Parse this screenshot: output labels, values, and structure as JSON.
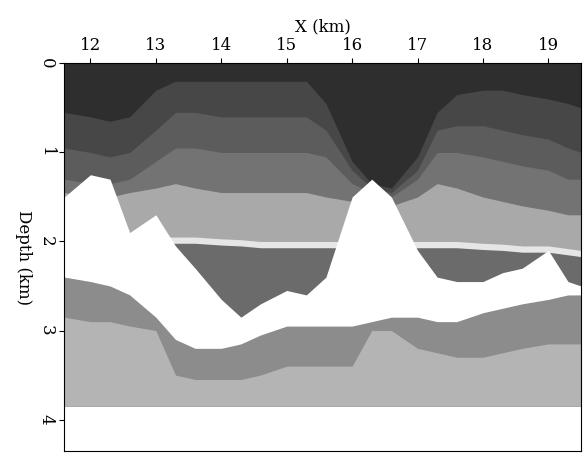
{
  "chart_data": {
    "type": "area",
    "xlabel": "X (km)",
    "ylabel": "Depth (km)",
    "xlim": [
      11.6,
      19.5
    ],
    "xticks": [
      12,
      13,
      14,
      15,
      16,
      17,
      18,
      19
    ],
    "ylim": [
      4.35,
      0
    ],
    "yticks": [
      0,
      1,
      2,
      3,
      4
    ],
    "model_bottom": 3.85,
    "x": [
      11.6,
      12.0,
      12.3,
      12.6,
      13.0,
      13.3,
      13.6,
      14.0,
      14.3,
      14.6,
      15.0,
      15.3,
      15.6,
      16.0,
      16.3,
      16.6,
      17.0,
      17.3,
      17.6,
      18.0,
      18.3,
      18.6,
      19.0,
      19.3,
      19.5
    ],
    "series": [
      {
        "color": "#2e2e2e",
        "values": [
          0,
          0,
          0,
          0,
          0,
          0,
          0,
          0,
          0,
          0,
          0,
          0,
          0,
          0,
          0,
          0,
          0,
          0,
          0,
          0,
          0,
          0,
          0,
          0,
          0
        ]
      },
      {
        "color": "#474747",
        "values": [
          0.55,
          0.6,
          0.65,
          0.6,
          0.3,
          0.2,
          0.2,
          0.2,
          0.2,
          0.2,
          0.2,
          0.2,
          0.45,
          1.1,
          1.35,
          1.4,
          1.05,
          0.55,
          0.35,
          0.3,
          0.3,
          0.35,
          0.4,
          0.45,
          0.5
        ]
      },
      {
        "color": "#5c5c5c",
        "values": [
          0.95,
          1.0,
          1.05,
          1.0,
          0.75,
          0.55,
          0.55,
          0.6,
          0.6,
          0.6,
          0.6,
          0.6,
          0.75,
          1.2,
          1.4,
          1.45,
          1.2,
          0.75,
          0.7,
          0.7,
          0.75,
          0.8,
          0.85,
          0.95,
          1.0
        ]
      },
      {
        "color": "#737373",
        "values": [
          1.3,
          1.35,
          1.35,
          1.3,
          1.1,
          0.95,
          0.95,
          1.0,
          1.0,
          1.0,
          1.0,
          1.0,
          1.05,
          1.35,
          1.45,
          1.5,
          1.3,
          1.0,
          1.0,
          1.05,
          1.1,
          1.15,
          1.2,
          1.3,
          1.3
        ]
      },
      {
        "color": "#a9a9a9",
        "values": [
          1.45,
          1.5,
          1.5,
          1.45,
          1.4,
          1.35,
          1.4,
          1.45,
          1.45,
          1.45,
          1.45,
          1.45,
          1.5,
          1.55,
          1.6,
          1.6,
          1.5,
          1.35,
          1.4,
          1.5,
          1.55,
          1.6,
          1.65,
          1.7,
          1.7
        ]
      },
      {
        "color": "#e6e6e6",
        "values": [
          1.95,
          1.95,
          1.95,
          1.95,
          1.95,
          1.95,
          1.95,
          1.97,
          1.98,
          2.0,
          2.0,
          2.0,
          2.0,
          2.0,
          2.0,
          2.0,
          2.0,
          2.0,
          2.0,
          2.02,
          2.03,
          2.05,
          2.05,
          2.08,
          2.1
        ]
      },
      {
        "color": "#6b6b6b",
        "values": [
          2.02,
          2.02,
          2.02,
          2.02,
          2.02,
          2.02,
          2.02,
          2.04,
          2.05,
          2.07,
          2.07,
          2.07,
          2.07,
          2.07,
          2.07,
          2.07,
          2.07,
          2.07,
          2.07,
          2.09,
          2.1,
          2.12,
          2.12,
          2.15,
          2.17
        ]
      },
      {
        "color": "#8c8c8c",
        "values": [
          2.4,
          2.45,
          2.5,
          2.6,
          2.8,
          3.0,
          3.1,
          3.1,
          3.1,
          3.0,
          2.9,
          2.9,
          2.9,
          2.9,
          2.85,
          2.8,
          2.8,
          2.85,
          2.85,
          2.75,
          2.7,
          2.65,
          2.6,
          2.55,
          2.55
        ]
      },
      {
        "color": "#b4b4b4",
        "values": [
          2.85,
          2.9,
          2.9,
          2.95,
          3.0,
          3.5,
          3.55,
          3.55,
          3.55,
          3.5,
          3.4,
          3.4,
          3.4,
          3.4,
          3.0,
          3.0,
          3.2,
          3.25,
          3.3,
          3.3,
          3.25,
          3.2,
          3.15,
          3.15,
          3.15
        ]
      },
      {
        "color": "#ffffff",
        "values": [
          1.5,
          1.25,
          1.3,
          1.9,
          1.7,
          2.05,
          2.3,
          2.65,
          2.85,
          2.7,
          2.55,
          2.6,
          2.4,
          1.5,
          1.3,
          1.5,
          2.1,
          2.4,
          2.45,
          2.45,
          2.35,
          2.3,
          2.1,
          2.45,
          2.5
        ],
        "base": [
          2.4,
          2.45,
          2.5,
          2.6,
          2.85,
          3.1,
          3.2,
          3.2,
          3.15,
          3.05,
          2.95,
          2.95,
          2.95,
          2.95,
          2.9,
          2.85,
          2.85,
          2.9,
          2.9,
          2.8,
          2.75,
          2.7,
          2.65,
          2.6,
          2.6
        ]
      }
    ]
  }
}
